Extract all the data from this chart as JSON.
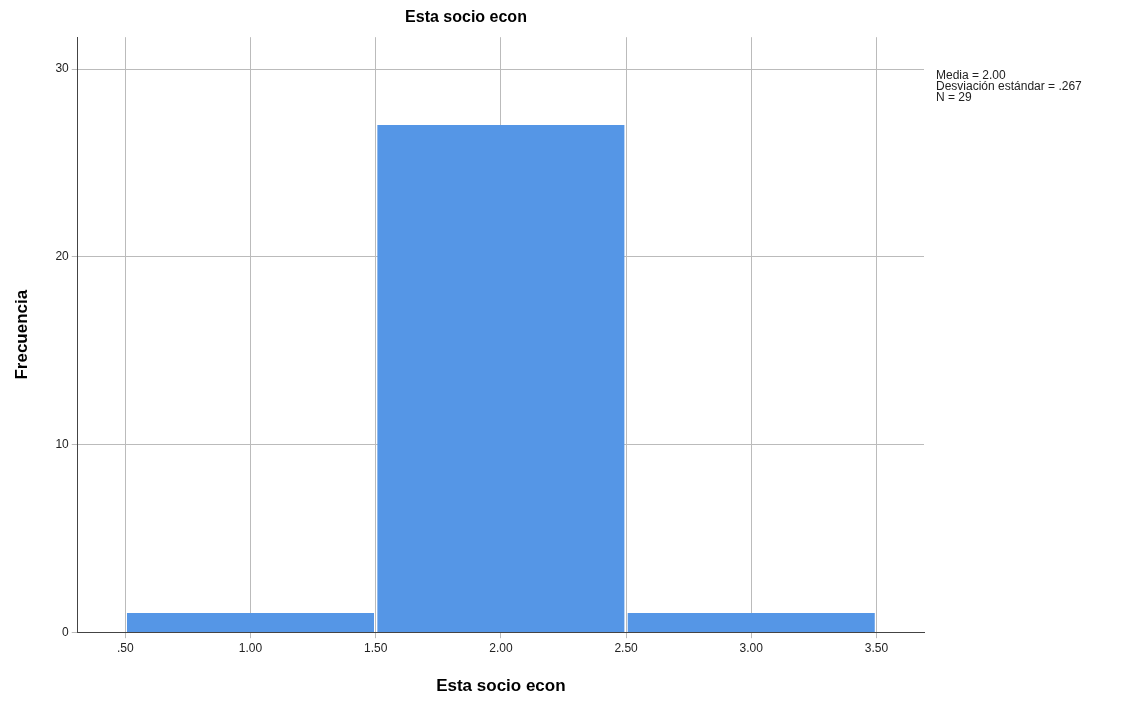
{
  "chart_data": {
    "type": "histogram",
    "title": "Esta socio econ",
    "xlabel": "Esta socio econ",
    "ylabel": "Frecuencia",
    "bins": [
      0.5,
      1.5,
      2.5,
      3.5
    ],
    "values": [
      1,
      27,
      1
    ],
    "color": "#5596e6",
    "xlim": [
      0.31,
      3.69
    ],
    "xticks": [
      {
        "value": 0.5,
        "label": ".50"
      },
      {
        "value": 1,
        "label": "1.00"
      },
      {
        "value": 1.5,
        "label": "1.50"
      },
      {
        "value": 2,
        "label": "2.00"
      },
      {
        "value": 2.5,
        "label": "2.50"
      },
      {
        "value": 3,
        "label": "3.00"
      },
      {
        "value": 3.5,
        "label": "3.50"
      }
    ],
    "ylim": [
      0,
      31.7
    ],
    "yticks": [
      0,
      10,
      20,
      30
    ],
    "grid": true,
    "annotations": [
      "Media = 2.00",
      "Desviación estándar = .267",
      "N = 29"
    ]
  }
}
